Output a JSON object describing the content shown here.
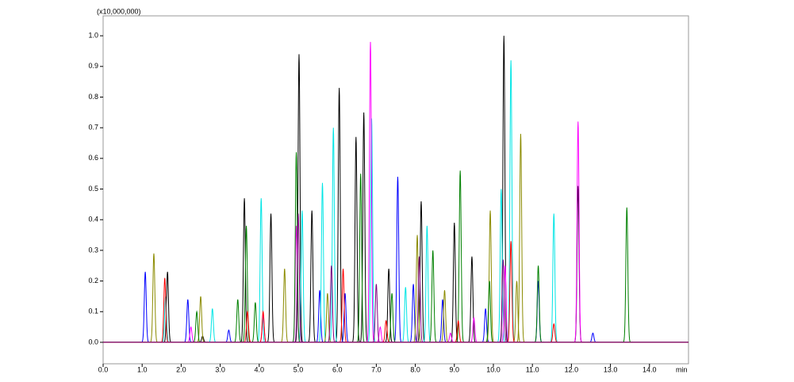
{
  "chart_data": {
    "type": "chromatogram",
    "y_label": "(x10,000,000)",
    "x_label": "min",
    "xlim": [
      0,
      15
    ],
    "ylim": [
      -0.07,
      1.065
    ],
    "xticks": [
      {
        "value": 0,
        "label": "0.0"
      },
      {
        "value": 1,
        "label": "1.0"
      },
      {
        "value": 2,
        "label": "2.0"
      },
      {
        "value": 3,
        "label": "3.0"
      },
      {
        "value": 4,
        "label": "4.0"
      },
      {
        "value": 5,
        "label": "5.0"
      },
      {
        "value": 6,
        "label": "6.0"
      },
      {
        "value": 7,
        "label": "7.0"
      },
      {
        "value": 8,
        "label": "8.0"
      },
      {
        "value": 9,
        "label": "9.0"
      },
      {
        "value": 10,
        "label": "10.0"
      },
      {
        "value": 11,
        "label": "11.0"
      },
      {
        "value": 12,
        "label": "12.0"
      },
      {
        "value": 13,
        "label": "13.0"
      },
      {
        "value": 14,
        "label": "14.0"
      }
    ],
    "yticks": [
      {
        "value": 0,
        "label": "0.0"
      },
      {
        "value": 0.1,
        "label": "0.1"
      },
      {
        "value": 0.2,
        "label": "0.2"
      },
      {
        "value": 0.3,
        "label": "0.3"
      },
      {
        "value": 0.4,
        "label": "0.4"
      },
      {
        "value": 0.5,
        "label": "0.5"
      },
      {
        "value": 0.6,
        "label": "0.6"
      },
      {
        "value": 0.7,
        "label": "0.7"
      },
      {
        "value": 0.8,
        "label": "0.8"
      },
      {
        "value": 0.9,
        "label": "0.9"
      },
      {
        "value": 1,
        "label": "1.0"
      }
    ],
    "series": [
      {
        "color": "#000000",
        "x": [
          1.65,
          2.55,
          3.62,
          4.3,
          5.02,
          5.35,
          6.05,
          6.48,
          6.68,
          7.32,
          8.15,
          9.0,
          9.45,
          10.27,
          12.17
        ],
        "values": [
          0.23,
          0.02,
          0.47,
          0.42,
          0.94,
          0.43,
          0.83,
          0.67,
          0.75,
          0.24,
          0.46,
          0.39,
          0.28,
          1.0,
          0.51
        ]
      },
      {
        "color": "#0000ff",
        "x": [
          1.08,
          2.17,
          3.22,
          5.55,
          6.2,
          7.55,
          7.95,
          8.7,
          9.8,
          11.15,
          12.55
        ],
        "values": [
          0.23,
          0.14,
          0.04,
          0.17,
          0.16,
          0.54,
          0.19,
          0.14,
          0.11,
          0.2,
          0.03
        ]
      },
      {
        "color": "#00e5e5",
        "x": [
          1.6,
          2.8,
          4.05,
          5.1,
          5.62,
          5.9,
          6.88,
          7.75,
          8.3,
          10.2,
          10.45,
          11.55
        ],
        "values": [
          0.15,
          0.11,
          0.47,
          0.43,
          0.52,
          0.7,
          0.73,
          0.18,
          0.38,
          0.5,
          0.92,
          0.42
        ]
      },
      {
        "color": "#ff00ff",
        "x": [
          2.25,
          4.1,
          4.95,
          6.85,
          7.1,
          8.9,
          9.5,
          10.3,
          12.17
        ],
        "values": [
          0.05,
          0.09,
          0.38,
          0.98,
          0.05,
          0.03,
          0.08,
          0.25,
          0.72
        ]
      },
      {
        "color": "#8b8b00",
        "x": [
          1.3,
          2.5,
          4.65,
          5.75,
          8.05,
          8.75,
          9.92,
          10.6,
          10.7
        ],
        "values": [
          0.29,
          0.15,
          0.24,
          0.16,
          0.35,
          0.17,
          0.43,
          0.2,
          0.68
        ]
      },
      {
        "color": "#008000",
        "x": [
          2.4,
          3.45,
          3.67,
          3.9,
          4.95,
          6.6,
          7.4,
          8.45,
          9.15,
          9.9,
          11.15,
          13.42
        ],
        "values": [
          0.1,
          0.14,
          0.38,
          0.13,
          0.62,
          0.55,
          0.16,
          0.3,
          0.56,
          0.2,
          0.25,
          0.44
        ]
      },
      {
        "color": "#ff0000",
        "x": [
          1.58,
          3.7,
          4.1,
          6.15,
          7.25,
          9.1,
          10.45,
          11.55
        ],
        "values": [
          0.21,
          0.1,
          0.1,
          0.24,
          0.07,
          0.07,
          0.33,
          0.06
        ]
      },
      {
        "color": "#800080",
        "x": [
          5.0,
          5.85,
          7.0,
          8.1,
          10.25
        ],
        "values": [
          0.42,
          0.25,
          0.19,
          0.28,
          0.27
        ]
      }
    ]
  }
}
